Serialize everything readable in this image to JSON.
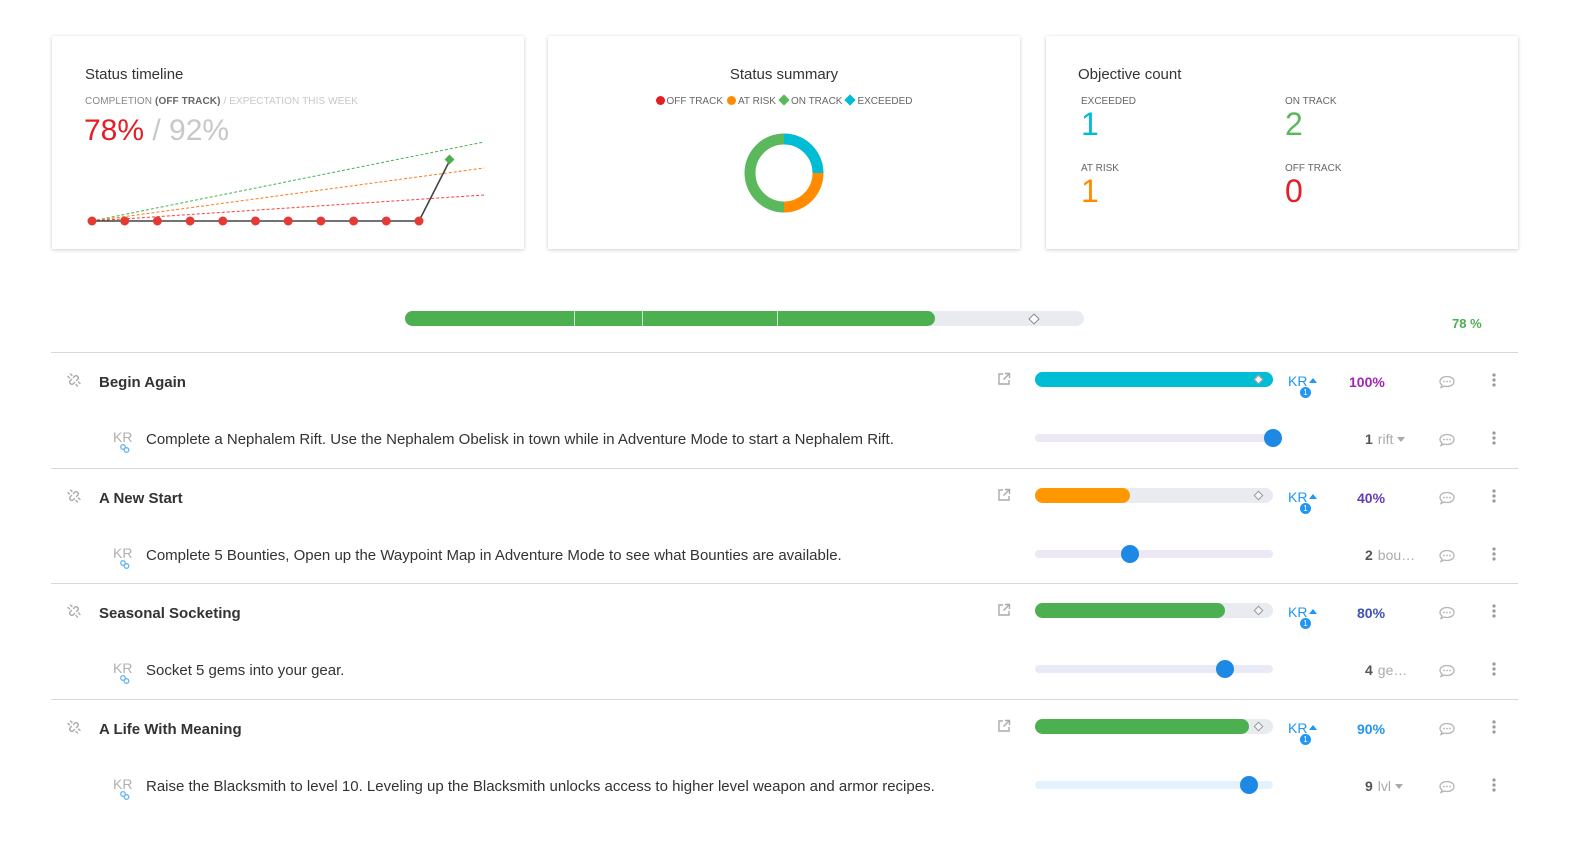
{
  "timeline": {
    "title": "Status timeline",
    "completion_label": "COMPLETION",
    "status_label": "(OFF TRACK)",
    "expectation_label": "/ EXPECTATION THIS WEEK",
    "completion_value": "78%",
    "expectation_value": "/ 92%",
    "colors": {
      "actual": "#e53935",
      "line": "#444444",
      "on_track": "#4caf50",
      "at_risk": "#ff7a1a",
      "off_track": "#f44336"
    }
  },
  "summary": {
    "title": "Status summary",
    "legend": [
      {
        "label": "OFF TRACK",
        "color": "#e31e24",
        "shape": "dot"
      },
      {
        "label": "AT RISK",
        "color": "#ff8c00",
        "shape": "dot"
      },
      {
        "label": "ON TRACK",
        "color": "#5cb85c",
        "shape": "diamond"
      },
      {
        "label": "EXCEEDED",
        "color": "#00bcd4",
        "shape": "diamond"
      }
    ],
    "donut": [
      {
        "status": "EXCEEDED",
        "count": 1,
        "color": "#00bcd4"
      },
      {
        "status": "AT RISK",
        "count": 1,
        "color": "#ff8c00"
      },
      {
        "status": "ON TRACK",
        "count": 2,
        "color": "#5cb85c"
      }
    ]
  },
  "count": {
    "title": "Objective count",
    "items": [
      {
        "label": "EXCEEDED",
        "value": "1",
        "color": "#00bcd4"
      },
      {
        "label": "ON TRACK",
        "value": "2",
        "color": "#5cb85c"
      },
      {
        "label": "AT RISK",
        "value": "1",
        "color": "#ff8c00"
      },
      {
        "label": "OFF TRACK",
        "value": "0",
        "color": "#e31e24"
      }
    ]
  },
  "overall": {
    "progress": 0.78,
    "expectation": 0.92,
    "label": "78 %"
  },
  "objectives": [
    {
      "title": "Begin Again",
      "progress": 1.0,
      "bar_color": "#00bcd4",
      "pct": "100%",
      "pct_color": "#9c27b0",
      "kr": "KR",
      "kr_count": "1",
      "key_result": {
        "icon": "KR",
        "text": "Complete a Nephalem Rift. Use the Nephalem Obelisk in town while in Adventure Mode to start a Nephalem Rift.",
        "progress": 1.0,
        "track": "#ede7f6",
        "value": "1",
        "unit": "rift",
        "dropdown": true
      }
    },
    {
      "title": "A New Start",
      "progress": 0.4,
      "bar_color": "#ff9800",
      "pct": "40%",
      "pct_color": "#673ab7",
      "kr": "KR",
      "kr_count": "1",
      "key_result": {
        "icon": "KR",
        "text": "Complete 5 Bounties, Open up the Waypoint Map in Adventure Mode to see what Bounties are available.",
        "progress": 0.4,
        "track": "#ede7f6",
        "value": "2",
        "unit": "bou…",
        "dropdown": false
      }
    },
    {
      "title": "Seasonal Socketing",
      "progress": 0.8,
      "bar_color": "#4caf50",
      "pct": "80%",
      "pct_color": "#3f51b5",
      "kr": "KR",
      "kr_count": "1",
      "key_result": {
        "icon": "KR",
        "text": "Socket 5 gems into your gear.",
        "progress": 0.8,
        "track": "#e8eaf6",
        "value": "4",
        "unit": "ge…",
        "dropdown": false
      }
    },
    {
      "title": "A Life With Meaning",
      "progress": 0.9,
      "bar_color": "#4caf50",
      "pct": "90%",
      "pct_color": "#2196f3",
      "kr": "KR",
      "kr_count": "1",
      "key_result": {
        "icon": "KR",
        "text": "Raise the Blacksmith to level 10. Leveling up the Blacksmith unlocks access to higher level weapon and armor recipes.",
        "progress": 0.9,
        "track": "#e3f2fd",
        "value": "9",
        "unit": "lvl",
        "dropdown": true
      }
    }
  ]
}
